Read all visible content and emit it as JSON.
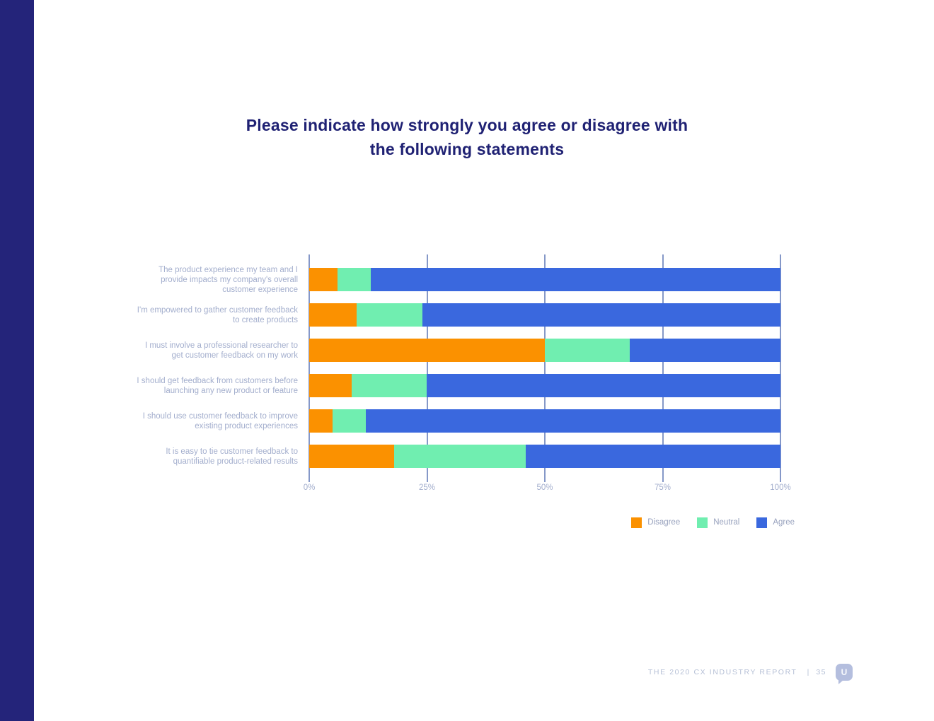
{
  "page": {
    "title_line1": "Please indicate how strongly you agree or disagree with",
    "title_line2": "the following statements",
    "footer_text": "THE 2020 CX INDUSTRY REPORT",
    "footer_separator": "|",
    "footer_page": "35",
    "logo_letter": "U"
  },
  "colors": {
    "sidebar": "#24247a",
    "title": "#1f2173",
    "gridline": "#8598c8",
    "axis_label": "#a3aecd",
    "category_label": "#a3aecd",
    "legend_label": "#97a1bd",
    "footer_text": "#b6c0d6",
    "logo": "#b4bede"
  },
  "chart_data": {
    "type": "bar",
    "orientation": "horizontal",
    "stacked": true,
    "title": "Please indicate how strongly you agree or disagree with the following statements",
    "xlabel": "",
    "ylabel": "",
    "xlim": [
      0,
      100
    ],
    "x_ticks": [
      "0%",
      "25%",
      "50%",
      "75%",
      "100%"
    ],
    "x_tick_values": [
      0,
      25,
      50,
      75,
      100
    ],
    "grid": "vertical",
    "legend_position": "bottom-right",
    "categories": [
      "The product experience my team and I provide impacts my company's overall customer experience",
      "I'm empowered to gather customer feedback to create products",
      "I must involve a professional researcher to get customer feedback on my work",
      "I should get feedback from customers before launching any new product or feature",
      "I should use customer feedback to improve existing product experiences",
      "It is easy to tie customer feedback to quantifiable product-related results"
    ],
    "series": [
      {
        "name": "Disagree",
        "color": "#fb9100",
        "values": [
          6,
          10,
          50,
          9,
          5,
          18
        ]
      },
      {
        "name": "Neutral",
        "color": "#70eeb0",
        "values": [
          7,
          14,
          18,
          16,
          7,
          28
        ]
      },
      {
        "name": "Agree",
        "color": "#3a68de",
        "values": [
          87,
          76,
          32,
          75,
          88,
          54
        ]
      }
    ]
  }
}
